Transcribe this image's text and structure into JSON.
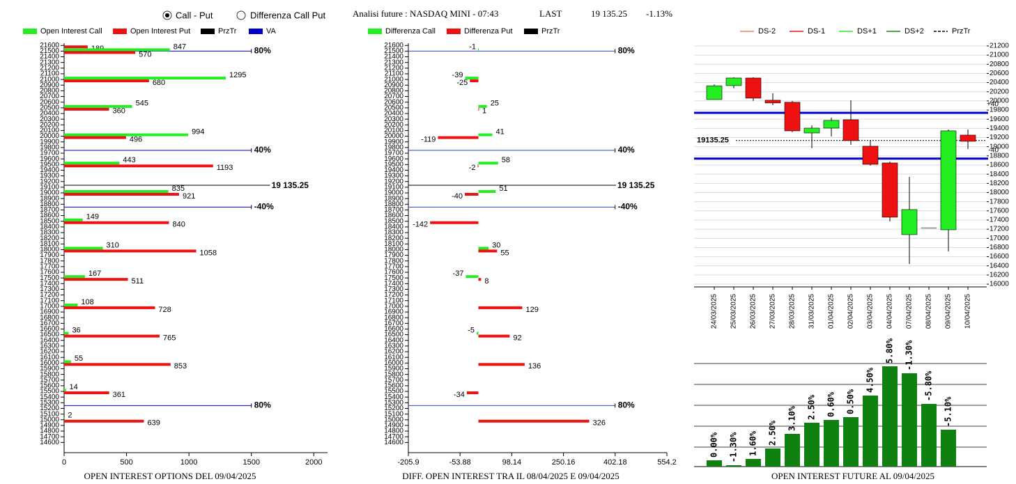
{
  "header": {
    "radios": [
      {
        "label": "Call - Put",
        "selected": true
      },
      {
        "label": "Differenza Call Put",
        "selected": false
      }
    ],
    "title": "Analisi future : NASDAQ MINI - 07:43",
    "last_label": "LAST",
    "last_value": "19 135.25",
    "change": "-1.13%"
  },
  "chart_data": [
    {
      "type": "hbar",
      "title": "OPEN INTEREST OPTIONS DEL 09/04/2025",
      "y": [
        21600,
        21500,
        21000,
        20500,
        20000,
        19500,
        19000,
        18500,
        18000,
        17500,
        17000,
        16500,
        16000,
        15500,
        15000
      ],
      "series": [
        {
          "name": "Open Interest Call",
          "color": "#22ee22",
          "values": [
            null,
            847,
            1295,
            545,
            994,
            443,
            835,
            149,
            310,
            167,
            108,
            36,
            55,
            14,
            2
          ]
        },
        {
          "name": "Open Interest Put",
          "color": "#ee1111",
          "values": [
            189,
            570,
            680,
            360,
            496,
            1193,
            921,
            840,
            1058,
            511,
            728,
            765,
            853,
            361,
            639
          ]
        }
      ],
      "legend_lines": [
        {
          "name": "PrzTr",
          "color": "#000000"
        },
        {
          "name": "VA",
          "color": "#0000cc"
        }
      ],
      "levels": [
        {
          "value": 21500,
          "label": "80%"
        },
        {
          "value": 19750,
          "label": "40%"
        },
        {
          "value": 18750,
          "label": "-40%"
        },
        {
          "value": 15250,
          "label": "80%"
        }
      ],
      "price": {
        "value": 19135.25,
        "label": "19 135.25"
      },
      "xlim": [
        0,
        2110
      ],
      "xticks": [
        0,
        500,
        1000,
        1500,
        2000
      ],
      "ylim": [
        14420,
        21640
      ],
      "yticks": [
        14600,
        14700,
        14800,
        14900,
        15000,
        15100,
        15200,
        15300,
        15400,
        15500,
        15600,
        15700,
        15800,
        15900,
        16000,
        16100,
        16200,
        16300,
        16400,
        16500,
        16600,
        16700,
        16800,
        16900,
        17000,
        17100,
        17200,
        17300,
        17400,
        17500,
        17600,
        17700,
        17800,
        17900,
        18000,
        18100,
        18200,
        18300,
        18400,
        18500,
        18600,
        18700,
        18800,
        18900,
        19000,
        19100,
        19200,
        19300,
        19400,
        19500,
        19600,
        19700,
        19800,
        19900,
        20000,
        20100,
        20200,
        20300,
        20400,
        20500,
        20600,
        20700,
        20800,
        20900,
        21000,
        21100,
        21200,
        21300,
        21400,
        21500,
        21600
      ]
    },
    {
      "type": "hbar",
      "title": "DIFF. OPEN INTEREST TRA IL 08/04/2025 E 09/04/2025",
      "y": [
        21500,
        21000,
        20500,
        20000,
        19500,
        19000,
        18500,
        18000,
        17500,
        17000,
        16500,
        16000,
        15500,
        15000
      ],
      "series": [
        {
          "name": "Differenza Call",
          "color": "#22ee22",
          "values": [
            -1,
            -39,
            25,
            41,
            58,
            51,
            null,
            30,
            -37,
            null,
            -5,
            null,
            null,
            null
          ]
        },
        {
          "name": "Differenza Put",
          "color": "#ee1111",
          "values": [
            null,
            -25,
            1,
            -119,
            -2,
            -40,
            -142,
            55,
            8,
            129,
            92,
            136,
            -34,
            326
          ]
        }
      ],
      "legend_lines": [
        {
          "name": "PrzTr",
          "color": "#000000"
        }
      ],
      "levels": [
        {
          "value": 21500,
          "label": "80%"
        },
        {
          "value": 19750,
          "label": "40%"
        },
        {
          "value": 18750,
          "label": "-40%"
        },
        {
          "value": 15250,
          "label": "80%"
        }
      ],
      "price": {
        "value": 19135.25,
        "label": "19 135.25"
      },
      "xlim": [
        -205.9,
        554.2
      ],
      "xticks": [
        -205.9,
        -53.88,
        98.14,
        250.16,
        402.18,
        554.2
      ],
      "ylim": [
        14420,
        21640
      ],
      "yticks": [
        14600,
        14700,
        14800,
        14900,
        15000,
        15100,
        15200,
        15300,
        15400,
        15500,
        15600,
        15700,
        15800,
        15900,
        16000,
        16100,
        16200,
        16300,
        16400,
        16500,
        16600,
        16700,
        16800,
        16900,
        17000,
        17100,
        17200,
        17300,
        17400,
        17500,
        17600,
        17700,
        17800,
        17900,
        18000,
        18100,
        18200,
        18300,
        18400,
        18500,
        18600,
        18700,
        18800,
        18900,
        19000,
        19100,
        19200,
        19300,
        19400,
        19500,
        19600,
        19700,
        19800,
        19900,
        20000,
        20100,
        20200,
        20300,
        20400,
        20500,
        20600,
        20700,
        20800,
        20900,
        21000,
        21100,
        21200,
        21300,
        21400,
        21500,
        21600
      ]
    },
    {
      "type": "candlestick",
      "x": [
        "24/03/2025",
        "25/03/2025",
        "26/03/2025",
        "27/03/2025",
        "28/03/2025",
        "31/03/2025",
        "01/04/2025",
        "02/04/2025",
        "03/04/2025",
        "04/04/2025",
        "07/04/2025",
        "08/04/2025",
        "09/04/2025",
        "10/04/2025"
      ],
      "open": [
        20030,
        20334,
        20500,
        20015,
        19970,
        19300,
        19406,
        19589,
        19011,
        18646,
        17081,
        17233,
        17187,
        19254
      ],
      "high": [
        20360,
        20515,
        20515,
        20166,
        20000,
        19467,
        19635,
        20014,
        19148,
        18676,
        18342,
        17233,
        19376,
        19376
      ],
      "low": [
        20030,
        20273,
        20000,
        19908,
        19316,
        18966,
        19224,
        19042,
        18586,
        17370,
        16442,
        17233,
        16716,
        18950
      ],
      "close": [
        20330,
        20500,
        20060,
        19955,
        19346,
        19406,
        19574,
        19133,
        18616,
        17461,
        17628,
        17233,
        19346,
        19118
      ],
      "up_color": "#22ee22",
      "down_color": "#ee1111",
      "flat_color": "#888888",
      "legend": [
        {
          "name": "DS-2",
          "color": "#f08060",
          "dash": false
        },
        {
          "name": "DS-1",
          "color": "#ee1111",
          "dash": false
        },
        {
          "name": "DS+1",
          "color": "#22ee22",
          "dash": false
        },
        {
          "name": "DS+2",
          "color": "#118811",
          "dash": false
        },
        {
          "name": "PrzTr",
          "color": "#000000",
          "dash": true
        }
      ],
      "levels": [
        {
          "value": 19740,
          "label": "+40"
        },
        {
          "value": 18740,
          "label": "-40"
        }
      ],
      "price": 19135.25,
      "ylim": [
        15940,
        21260
      ],
      "yticks": [
        16000,
        16200,
        16400,
        16600,
        16800,
        17000,
        17200,
        17400,
        17600,
        17800,
        18000,
        18200,
        18400,
        18600,
        18800,
        19000,
        19200,
        19400,
        19600,
        19800,
        20000,
        20200,
        20400,
        20600,
        20800,
        21000,
        21200
      ],
      "grid": true
    },
    {
      "type": "bar",
      "title": "OPEN INTEREST FUTURE AL 09/04/2025",
      "values": [
        9,
        2,
        11,
        26,
        47,
        63,
        67,
        71,
        102,
        144,
        134,
        90,
        53
      ],
      "bar_labels": [
        "0.00%",
        "-1.30%",
        "1.60%",
        "2.50%",
        "3.10%",
        "2.50%",
        "0.60%",
        "0.50%",
        "4.50%",
        "5.80%",
        "-1.30%",
        "-5.80%",
        "-5.10%"
      ],
      "color": "#108010",
      "ylim": [
        0,
        155
      ],
      "grid": true
    }
  ]
}
